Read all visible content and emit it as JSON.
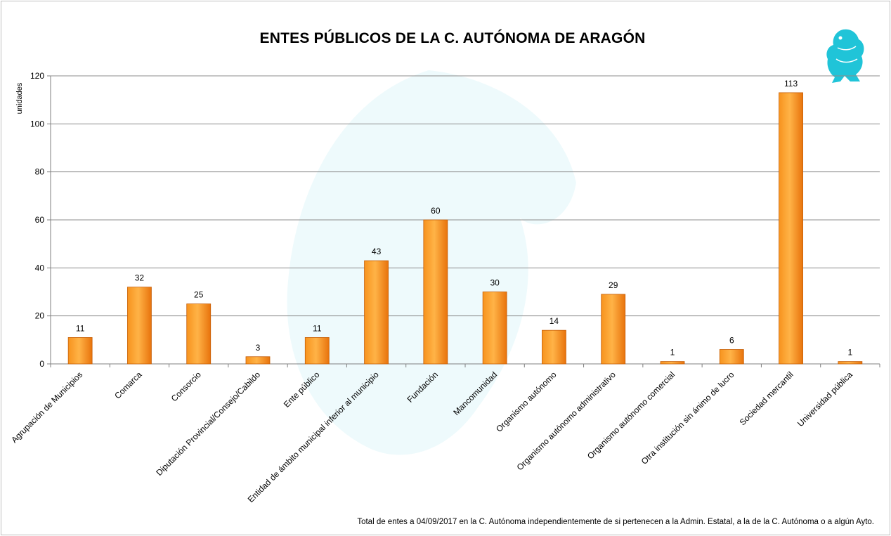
{
  "colors": {
    "bar_light": "#ffb347",
    "bar_dark": "#e8730c",
    "bar_edge": "#c65f08",
    "grid": "#8c8c8c",
    "logo": "#20c4d8"
  },
  "icons": {
    "logo": "griffin-logo-icon",
    "watermark": "eagle-watermark-icon"
  },
  "chart_data": {
    "type": "bar",
    "title": "ENTES PÚBLICOS DE LA C. AUTÓNOMA DE ARAGÓN",
    "ylabel": "unidades",
    "xlabel": "",
    "ylim": [
      0,
      120
    ],
    "yticks": [
      0,
      20,
      40,
      60,
      80,
      100,
      120
    ],
    "grid": true,
    "categories": [
      "Agrupación de Municipios",
      "Comarca",
      "Consorcio",
      "Diputación Provincial/Consejo/Cabildo",
      "Ente público",
      "Entidad de ámbito municipal inferior al municipio",
      "Fundación",
      "Mancomunidad",
      "Organismo autónomo",
      "Organismo autónomo administrativo",
      "Organismo autónomo comercial",
      "Otra institución sin ánimo de lucro",
      "Sociedad mercantil",
      "Universidad pública"
    ],
    "values": [
      11,
      32,
      25,
      3,
      11,
      43,
      60,
      30,
      14,
      29,
      1,
      6,
      113,
      1
    ],
    "footnote": "Total de entes  a 04/09/2017 en  la C. Autónoma  independientemente  de si pertenecen  a la Admin. Estatal, a la de la C. Autónoma  o a algún Ayto."
  }
}
